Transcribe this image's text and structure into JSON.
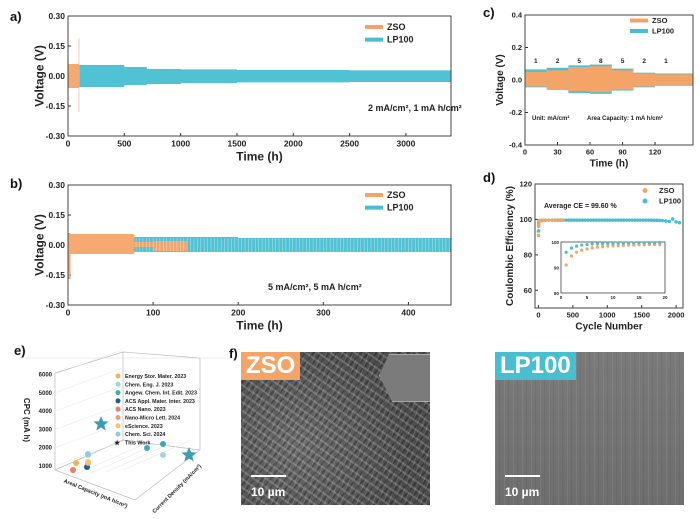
{
  "panel_labels": {
    "a": "a)",
    "b": "b)",
    "c": "c)",
    "d": "d)",
    "e": "e)",
    "f": "f)"
  },
  "colors": {
    "ZSO": "#f5a468",
    "LP100": "#47bfd1"
  },
  "chart_data": [
    {
      "id": "a",
      "type": "line",
      "xlabel": "Time (h)",
      "ylabel": "Voltage (V)",
      "xlim": [
        0,
        3400
      ],
      "ylim": [
        -0.3,
        0.3
      ],
      "xticks": [
        "0",
        "500",
        "1000",
        "1500",
        "2000",
        "2500",
        "3000"
      ],
      "yticks": [
        "0.30",
        "0.15",
        "0.00",
        "-0.15",
        "-0.30"
      ],
      "annotation": "2 mA/cm², 1 mA h/cm²",
      "legend": "top-right",
      "series": [
        {
          "name": "ZSO",
          "envelope": [
            [
              0,
              0.08,
              -0.17
            ],
            [
              5,
              0.06,
              -0.06
            ],
            [
              90,
              0.06,
              -0.06
            ],
            [
              95,
              0.19,
              -0.18
            ],
            [
              100,
              0.05,
              -0.05
            ]
          ]
        },
        {
          "name": "LP100",
          "envelope": [
            [
              100,
              0.055,
              -0.055
            ],
            [
              500,
              0.045,
              -0.045
            ],
            [
              700,
              0.035,
              -0.04
            ],
            [
              1000,
              0.033,
              -0.035
            ],
            [
              1500,
              0.03,
              -0.032
            ],
            [
              2500,
              0.028,
              -0.03
            ],
            [
              3400,
              0.03,
              -0.032
            ]
          ]
        }
      ]
    },
    {
      "id": "b",
      "type": "line",
      "xlabel": "Time (h)",
      "ylabel": "Voltage (V)",
      "xlim": [
        0,
        450
      ],
      "ylim": [
        -0.3,
        0.3
      ],
      "xticks": [
        "0",
        "100",
        "200",
        "300",
        "400"
      ],
      "yticks": [
        "0.30",
        "0.15",
        "0.00",
        "-0.15",
        "-0.30"
      ],
      "annotation": "5 mA/cm², 5 mA h/cm²",
      "legend": "top-right",
      "series": [
        {
          "name": "ZSO",
          "envelope": [
            [
              0,
              0.06,
              -0.17
            ],
            [
              3,
              0.055,
              -0.045
            ],
            [
              77,
              0.05,
              -0.045
            ],
            [
              78,
              0.015,
              -0.01
            ],
            [
              100,
              0.02,
              -0.03
            ],
            [
              140,
              0.01,
              -0.005
            ]
          ]
        },
        {
          "name": "LP100",
          "envelope": [
            [
              77,
              0.04,
              -0.035
            ],
            [
              200,
              0.035,
              -0.035
            ],
            [
              450,
              0.035,
              -0.035
            ]
          ]
        }
      ]
    },
    {
      "id": "c",
      "type": "line",
      "xlabel": "Time (h)",
      "ylabel": "Voltage (V)",
      "xlim": [
        0,
        155
      ],
      "ylim": [
        -0.4,
        0.4
      ],
      "xticks": [
        "0",
        "30",
        "60",
        "90",
        "120"
      ],
      "yticks": [
        "0.4",
        "0.2",
        "0.0",
        "-0.2",
        "-0.4"
      ],
      "annotations": [
        "Unit: mA/cm²",
        "Area Capacity: 1 mA h/cm²"
      ],
      "legend": "top-right",
      "current_steps": [
        {
          "label": "1",
          "start": 0,
          "end": 20
        },
        {
          "label": "2",
          "start": 20,
          "end": 40
        },
        {
          "label": "5",
          "start": 40,
          "end": 60
        },
        {
          "label": "8",
          "start": 60,
          "end": 80
        },
        {
          "label": "5",
          "start": 80,
          "end": 100
        },
        {
          "label": "2",
          "start": 100,
          "end": 120
        },
        {
          "label": "1",
          "start": 120,
          "end": 155
        }
      ],
      "series": [
        {
          "name": "LP100",
          "upper": [
            0.065,
            0.075,
            0.09,
            0.095,
            0.07,
            0.045,
            0.04
          ],
          "lower": [
            -0.045,
            -0.06,
            -0.08,
            -0.085,
            -0.065,
            -0.045,
            -0.035
          ]
        },
        {
          "name": "ZSO",
          "upper": [
            0.05,
            0.06,
            0.08,
            0.085,
            0.06,
            0.04,
            0.035
          ],
          "lower": [
            -0.04,
            -0.055,
            -0.07,
            -0.075,
            -0.06,
            -0.04,
            -0.03
          ]
        }
      ]
    },
    {
      "id": "d",
      "type": "scatter",
      "xlabel": "Cycle Number",
      "ylabel": "Coulombic Efficiency (%)",
      "xlim": [
        -50,
        2100
      ],
      "ylim": [
        50,
        120
      ],
      "xticks": [
        "0",
        "500",
        "1000",
        "1500",
        "2000"
      ],
      "yticks": [
        "60",
        "80",
        "100",
        "120"
      ],
      "annotation": "Average CE = 99.60 %",
      "legend": "top-right",
      "series": [
        {
          "name": "ZSO",
          "x": [
            1,
            3,
            5,
            10,
            20,
            40,
            60,
            100,
            150,
            200,
            250,
            300,
            350
          ],
          "y": [
            91,
            96,
            97.5,
            98.8,
            99.2,
            99.4,
            99.5,
            99.5,
            99.6,
            99.6,
            99.6,
            99.6,
            99.6
          ]
        },
        {
          "name": "LP100",
          "x": [
            1,
            3,
            5,
            10,
            20,
            50,
            100,
            200,
            400,
            600,
            800,
            1000,
            1200,
            1400,
            1600,
            1800,
            1900,
            1950,
            2000,
            2050
          ],
          "y": [
            93.5,
            97,
            98.5,
            99.2,
            99.4,
            99.5,
            99.6,
            99.6,
            99.6,
            99.6,
            99.6,
            99.6,
            99.6,
            99.6,
            99.6,
            99.4,
            98.8,
            100.2,
            98.6,
            98.2
          ]
        }
      ],
      "inset": {
        "xlim": [
          0,
          20
        ],
        "ylim": [
          80,
          100
        ],
        "xticks": [
          "0",
          "5",
          "10",
          "15",
          "20"
        ],
        "yticks": [
          "100",
          "90",
          "80"
        ],
        "series": [
          {
            "name": "ZSO",
            "x": [
              1,
              2,
              3,
              4,
              5,
              6,
              7,
              8,
              9,
              10,
              11,
              12,
              13,
              14,
              15,
              16,
              17,
              18,
              19
            ],
            "y": [
              91,
              94.5,
              96,
              96.8,
              97.3,
              97.7,
              98,
              98.2,
              98.4,
              98.5,
              98.6,
              98.7,
              98.8,
              98.8,
              98.9,
              98.9,
              99,
              99,
              99
            ]
          },
          {
            "name": "LP100",
            "x": [
              1,
              2,
              3,
              4,
              5,
              6,
              7,
              8,
              9,
              10,
              11,
              12,
              13,
              14,
              15,
              16,
              17,
              18,
              19
            ],
            "y": [
              96,
              97.6,
              98.4,
              98.8,
              99,
              99.2,
              99.3,
              99.4,
              99.5,
              99.5,
              99.6,
              99.6,
              99.6,
              99.6,
              99.7,
              99.7,
              99.7,
              99.7,
              99.7
            ]
          }
        ]
      }
    },
    {
      "id": "e",
      "type": "scatter",
      "zlabel": "CPC (mA h)",
      "xlabel": "Areal Capacity (mA h/cm²)",
      "ylabel": "Current Density (mA/cm²)",
      "zticks": [
        "1000",
        "2000",
        "3000",
        "4000",
        "5000",
        "6000"
      ],
      "zlim": [
        500,
        6000
      ],
      "legend": "top-right",
      "series": [
        {
          "name": "Energy Stor. Mater. 2023",
          "color": "#f2b45a",
          "cpc": 1000
        },
        {
          "name": "Chem. Eng. J. 2023",
          "color": "#9fd7e0",
          "cpc": 1500
        },
        {
          "name": "Angew. Chem. Int. Edit. 2023",
          "color": "#3da9bf",
          "cpc": 1800
        },
        {
          "name": "ACS Appl. Mater. Inter. 2023",
          "color": "#1f5f8f",
          "cpc": 800
        },
        {
          "name": "ACS Nano. 2023",
          "color": "#f07c6a",
          "cpc": 700
        },
        {
          "name": "Nano-Micro Lett. 2024",
          "color": "#f39a6f",
          "cpc": 800
        },
        {
          "name": "eScience. 2023",
          "color": "#f7c46a",
          "cpc": 1000
        },
        {
          "name": "Chem. Sci. 2024",
          "color": "#8fd0dc",
          "cpc": 1100
        },
        {
          "name": "This Work",
          "color": "#3a9fb5",
          "cpc": 3300,
          "marker": "star"
        }
      ]
    }
  ],
  "sem": {
    "zso": {
      "tag": "ZSO",
      "scale": "10 µm"
    },
    "lp100": {
      "tag": "LP100",
      "scale": "10 µm"
    }
  }
}
